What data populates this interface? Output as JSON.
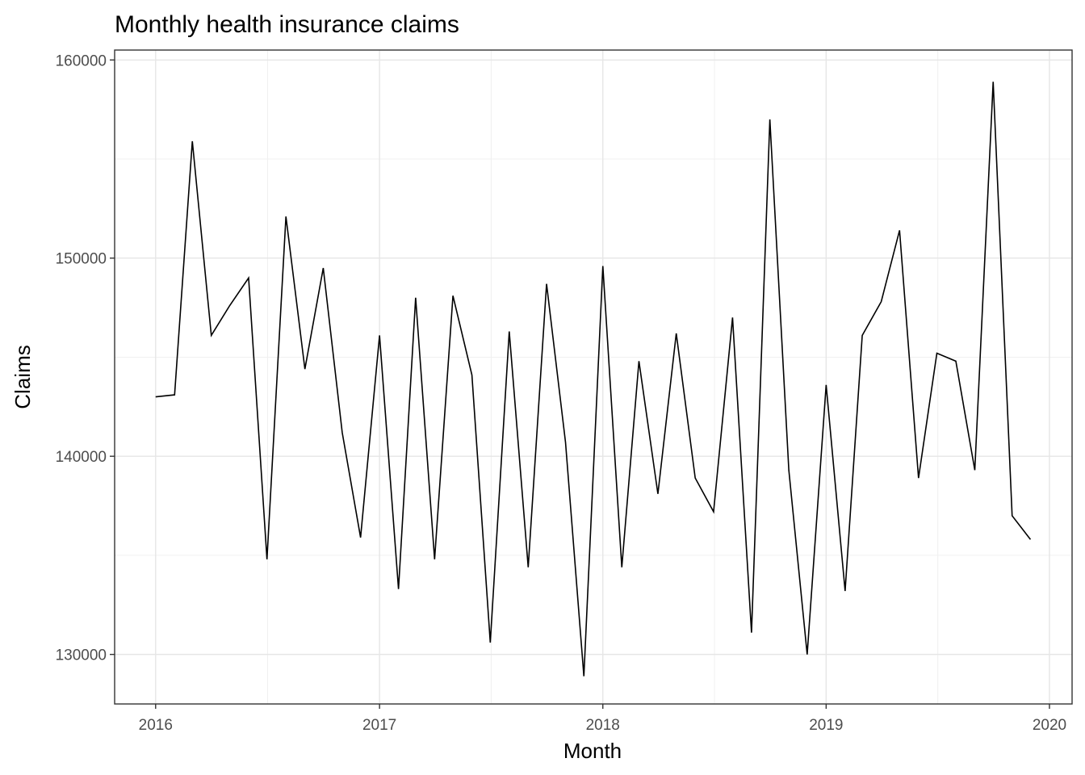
{
  "chart_data": {
    "type": "line",
    "title": "Monthly health insurance claims",
    "xlabel": "Month",
    "ylabel": "Claims",
    "xlim": [
      "2015-10-26",
      "2020-02-07"
    ],
    "ylim": [
      127500,
      160500
    ],
    "x_ticks": [
      "2016",
      "2017",
      "2018",
      "2019",
      "2020"
    ],
    "y_ticks": [
      "130000",
      "140000",
      "150000",
      "160000"
    ],
    "grid": true,
    "series": [
      {
        "color": "#000000",
        "x": [
          "2016-01-01",
          "2016-02-01",
          "2016-03-01",
          "2016-04-01",
          "2016-05-01",
          "2016-06-01",
          "2016-07-01",
          "2016-08-01",
          "2016-09-01",
          "2016-10-01",
          "2016-11-01",
          "2016-12-01",
          "2017-01-01",
          "2017-02-01",
          "2017-03-01",
          "2017-04-01",
          "2017-05-01",
          "2017-06-01",
          "2017-07-01",
          "2017-08-01",
          "2017-09-01",
          "2017-10-01",
          "2017-11-01",
          "2017-12-01",
          "2018-01-01",
          "2018-02-01",
          "2018-03-01",
          "2018-04-01",
          "2018-05-01",
          "2018-06-01",
          "2018-07-01",
          "2018-08-01",
          "2018-09-01",
          "2018-10-01",
          "2018-11-01",
          "2018-12-01",
          "2019-01-01",
          "2019-02-01",
          "2019-03-01",
          "2019-04-01",
          "2019-05-01",
          "2019-06-01",
          "2019-07-01",
          "2019-08-01",
          "2019-09-01",
          "2019-10-01",
          "2019-11-01",
          "2019-12-01"
        ],
        "values": [
          143000,
          143100,
          155900,
          146100,
          147600,
          149000,
          134800,
          152100,
          144400,
          149500,
          141200,
          135900,
          146100,
          133300,
          148000,
          134800,
          148100,
          144100,
          130600,
          146300,
          134400,
          148700,
          140700,
          128900,
          149600,
          134400,
          144800,
          138100,
          146200,
          138900,
          137200,
          147000,
          131100,
          157000,
          139300,
          130000,
          143600,
          133200,
          146100,
          147800,
          151400,
          138900,
          145200,
          144800,
          139300,
          158900,
          137000,
          135800
        ]
      }
    ]
  }
}
